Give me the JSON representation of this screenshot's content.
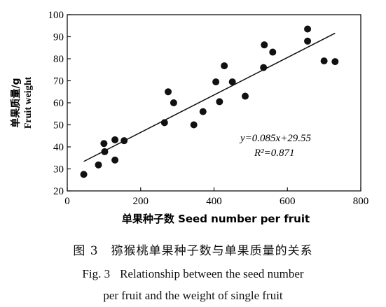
{
  "chart_data": {
    "type": "scatter",
    "xlabel": "单果种子数 Seed number per fruit",
    "ylabel_cn": "单果质量/g",
    "ylabel_en": "Fruit weight",
    "xlim": [
      0,
      800
    ],
    "ylim": [
      20,
      100
    ],
    "x_ticks": [
      0,
      200,
      400,
      600,
      800
    ],
    "y_ticks": [
      20,
      30,
      40,
      50,
      60,
      70,
      80,
      90,
      100
    ],
    "grid": false,
    "points": [
      {
        "x": 45,
        "y": 27.5
      },
      {
        "x": 85,
        "y": 31.8
      },
      {
        "x": 100,
        "y": 41.5
      },
      {
        "x": 102,
        "y": 37.8
      },
      {
        "x": 130,
        "y": 43.2
      },
      {
        "x": 130,
        "y": 34.0
      },
      {
        "x": 155,
        "y": 42.8
      },
      {
        "x": 265,
        "y": 51.0
      },
      {
        "x": 275,
        "y": 65.0
      },
      {
        "x": 290,
        "y": 60.0
      },
      {
        "x": 345,
        "y": 50.0
      },
      {
        "x": 370,
        "y": 56.0
      },
      {
        "x": 405,
        "y": 69.5
      },
      {
        "x": 415,
        "y": 60.5
      },
      {
        "x": 428,
        "y": 76.8
      },
      {
        "x": 450,
        "y": 69.5
      },
      {
        "x": 485,
        "y": 63.0
      },
      {
        "x": 535,
        "y": 76.0
      },
      {
        "x": 537,
        "y": 86.3
      },
      {
        "x": 560,
        "y": 83.0
      },
      {
        "x": 655,
        "y": 93.5
      },
      {
        "x": 655,
        "y": 88.0
      },
      {
        "x": 700,
        "y": 79.0
      },
      {
        "x": 730,
        "y": 78.7
      }
    ],
    "regression": {
      "slope": 0.085,
      "intercept": 29.55,
      "x_range": [
        45,
        730
      ]
    },
    "equation_text": "y=0.085x+29.55",
    "r2_text": "R²=0.871"
  },
  "caption": {
    "cn": "图 3　猕猴桃单果种子数与单果质量的关系",
    "en_label": "Fig. 3",
    "en_line1": "Relationship between the seed number",
    "en_line2": "per fruit and the weight of single fruit"
  }
}
